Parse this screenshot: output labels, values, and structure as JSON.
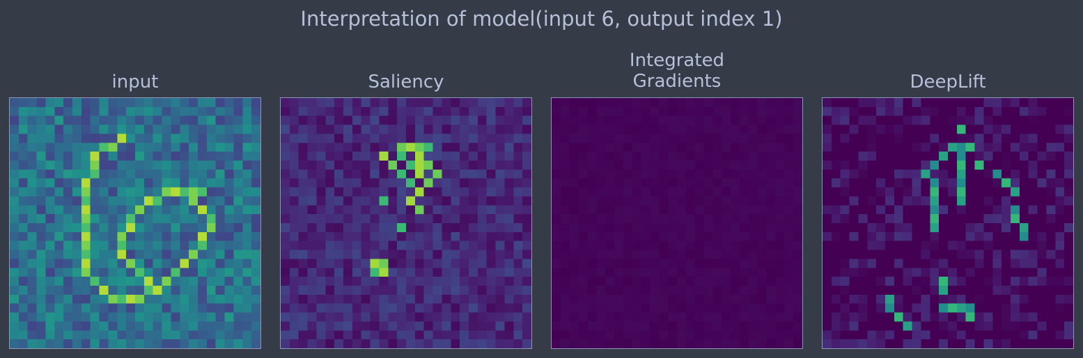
{
  "figure": {
    "suptitle": "Interpretation of model(input 6, output index 1)",
    "background": "#353c47",
    "text_color": "#b6c0d8",
    "spine_color": "#8e97b5"
  },
  "panels": [
    {
      "title_line1": "input",
      "title_line2": ""
    },
    {
      "title_line1": "Saliency",
      "title_line2": ""
    },
    {
      "title_line1": "Integrated",
      "title_line2": "Gradients"
    },
    {
      "title_line1": "DeepLift",
      "title_line2": ""
    }
  ],
  "chart_data": [
    {
      "type": "heatmap",
      "title": "input",
      "colormap": "viridis",
      "grid_size": [
        28,
        28
      ],
      "description": "noisy handwritten digit 6",
      "highlight_cells": [
        [
          4,
          12
        ],
        [
          5,
          11
        ],
        [
          5,
          10
        ],
        [
          6,
          9
        ],
        [
          7,
          9
        ],
        [
          8,
          9
        ],
        [
          9,
          8
        ],
        [
          10,
          8
        ],
        [
          11,
          8
        ],
        [
          12,
          8
        ],
        [
          13,
          8
        ],
        [
          14,
          8
        ],
        [
          15,
          8
        ],
        [
          16,
          8
        ],
        [
          17,
          8
        ],
        [
          18,
          8
        ],
        [
          19,
          8
        ],
        [
          20,
          9
        ],
        [
          21,
          10
        ],
        [
          22,
          11
        ],
        [
          22,
          12
        ],
        [
          22,
          13
        ],
        [
          22,
          14
        ],
        [
          21,
          15
        ],
        [
          21,
          16
        ],
        [
          20,
          17
        ],
        [
          19,
          18
        ],
        [
          18,
          19
        ],
        [
          17,
          20
        ],
        [
          16,
          21
        ],
        [
          15,
          21
        ],
        [
          14,
          22
        ],
        [
          13,
          22
        ],
        [
          12,
          21
        ],
        [
          11,
          20
        ],
        [
          10,
          19
        ],
        [
          10,
          18
        ],
        [
          10,
          17
        ],
        [
          11,
          16
        ],
        [
          11,
          15
        ],
        [
          12,
          14
        ],
        [
          13,
          13
        ],
        [
          14,
          13
        ],
        [
          15,
          12
        ],
        [
          16,
          12
        ],
        [
          17,
          12
        ],
        [
          18,
          13
        ],
        [
          19,
          14
        ],
        [
          20,
          15
        ],
        [
          10,
          20
        ],
        [
          10,
          21
        ]
      ]
    },
    {
      "type": "heatmap",
      "title": "Saliency",
      "colormap": "viridis",
      "grid_size": [
        28,
        28
      ],
      "highlight_cells": [
        [
          5,
          14
        ],
        [
          5,
          15
        ],
        [
          5,
          16
        ],
        [
          6,
          11
        ],
        [
          5,
          13
        ],
        [
          6,
          13
        ],
        [
          6,
          15
        ],
        [
          7,
          12
        ],
        [
          7,
          14
        ],
        [
          7,
          15
        ],
        [
          7,
          16
        ],
        [
          8,
          13
        ],
        [
          8,
          15
        ],
        [
          8,
          17
        ],
        [
          9,
          14
        ],
        [
          10,
          15
        ],
        [
          9,
          16
        ],
        [
          11,
          11
        ],
        [
          11,
          14
        ],
        [
          12,
          15
        ],
        [
          14,
          13
        ],
        [
          18,
          10
        ],
        [
          18,
          11
        ],
        [
          19,
          10
        ],
        [
          19,
          11
        ]
      ]
    },
    {
      "type": "heatmap",
      "title": "Integrated Gradients",
      "colormap": "viridis",
      "grid_size": [
        28,
        28
      ],
      "highlight_cells": []
    },
    {
      "type": "heatmap",
      "title": "DeepLift",
      "colormap": "viridis",
      "grid_size": [
        28,
        28
      ],
      "highlight_cells": [
        [
          3,
          15
        ],
        [
          5,
          14
        ],
        [
          5,
          15
        ],
        [
          5,
          16
        ],
        [
          6,
          13
        ],
        [
          6,
          15
        ],
        [
          7,
          15
        ],
        [
          8,
          15
        ],
        [
          9,
          15
        ],
        [
          10,
          15
        ],
        [
          11,
          15
        ],
        [
          7,
          12
        ],
        [
          7,
          17
        ],
        [
          8,
          11
        ],
        [
          9,
          12
        ],
        [
          10,
          12
        ],
        [
          11,
          12
        ],
        [
          12,
          12
        ],
        [
          13,
          12
        ],
        [
          14,
          12
        ],
        [
          8,
          19
        ],
        [
          9,
          20
        ],
        [
          10,
          21
        ],
        [
          12,
          21
        ],
        [
          13,
          21
        ],
        [
          14,
          22
        ],
        [
          15,
          22
        ],
        [
          20,
          13
        ],
        [
          21,
          13
        ],
        [
          23,
          13
        ],
        [
          23,
          14
        ],
        [
          23,
          15
        ],
        [
          23,
          16
        ],
        [
          24,
          16
        ],
        [
          22,
          7
        ],
        [
          23,
          7
        ],
        [
          24,
          8
        ],
        [
          25,
          9
        ]
      ]
    }
  ]
}
